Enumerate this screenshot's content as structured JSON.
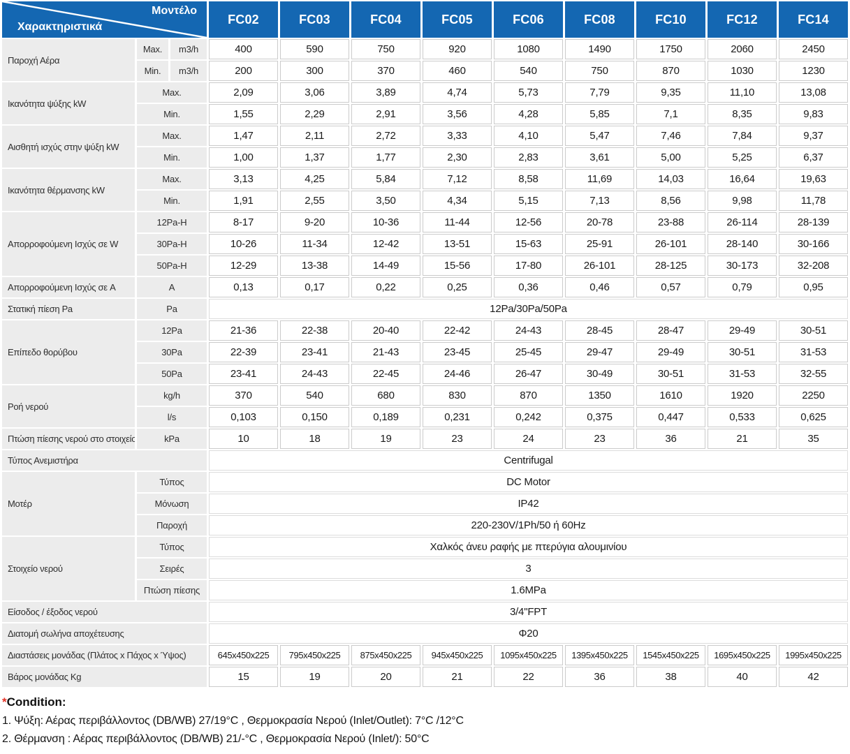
{
  "table": {
    "corner_top": "Μοντέλο",
    "corner_bottom": "Χαρακτηριστικά",
    "models": [
      "FC02",
      "FC03",
      "FC04",
      "FC05",
      "FC06",
      "FC08",
      "FC10",
      "FC12",
      "FC14"
    ],
    "colors": {
      "header_blue": "#1467b2",
      "label_bg": "#ececec",
      "cell_border": "#cbcbcb",
      "note_red": "#e53226"
    },
    "groups": [
      {
        "label": "Παροχή Αέρα",
        "rows": [
          {
            "sub": "Max.",
            "unit": "m3/h",
            "values": [
              "400",
              "590",
              "750",
              "920",
              "1080",
              "1490",
              "1750",
              "2060",
              "2450"
            ]
          },
          {
            "sub": "Min.",
            "unit": "m3/h",
            "values": [
              "200",
              "300",
              "370",
              "460",
              "540",
              "750",
              "870",
              "1030",
              "1230"
            ]
          }
        ]
      },
      {
        "label": "Ικανότητα ψύξης kW",
        "rows": [
          {
            "sub": "Max.",
            "values": [
              "2,09",
              "3,06",
              "3,89",
              "4,74",
              "5,73",
              "7,79",
              "9,35",
              "11,10",
              "13,08"
            ]
          },
          {
            "sub": "Min.",
            "values": [
              "1,55",
              "2,29",
              "2,91",
              "3,56",
              "4,28",
              "5,85",
              "7,1",
              "8,35",
              "9,83"
            ]
          }
        ]
      },
      {
        "label": "Αισθητή ισχύς στην ψύξη kW",
        "rows": [
          {
            "sub": "Max.",
            "values": [
              "1,47",
              "2,11",
              "2,72",
              "3,33",
              "4,10",
              "5,47",
              "7,46",
              "7,84",
              "9,37"
            ]
          },
          {
            "sub": "Min.",
            "values": [
              "1,00",
              "1,37",
              "1,77",
              "2,30",
              "2,83",
              "3,61",
              "5,00",
              "5,25",
              "6,37"
            ]
          }
        ]
      },
      {
        "label": "Ικανότητα θέρμανσης kW",
        "rows": [
          {
            "sub": "Max.",
            "values": [
              "3,13",
              "4,25",
              "5,84",
              "7,12",
              "8,58",
              "11,69",
              "14,03",
              "16,64",
              "19,63"
            ]
          },
          {
            "sub": "Min.",
            "values": [
              "1,91",
              "2,55",
              "3,50",
              "4,34",
              "5,15",
              "7,13",
              "8,56",
              "9,98",
              "11,78"
            ]
          }
        ]
      },
      {
        "label": "Απορροφούμενη Ισχύς σε W",
        "rows": [
          {
            "sub": "12Pa-H",
            "values": [
              "8-17",
              "9-20",
              "10-36",
              "11-44",
              "12-56",
              "20-78",
              "23-88",
              "26-114",
              "28-139"
            ]
          },
          {
            "sub": "30Pa-H",
            "values": [
              "10-26",
              "11-34",
              "12-42",
              "13-51",
              "15-63",
              "25-91",
              "26-101",
              "28-140",
              "30-166"
            ]
          },
          {
            "sub": "50Pa-H",
            "values": [
              "12-29",
              "13-38",
              "14-49",
              "15-56",
              "17-80",
              "26-101",
              "28-125",
              "30-173",
              "32-208"
            ]
          }
        ]
      },
      {
        "label": "Απορροφούμενη Ισχύς σε A",
        "rows": [
          {
            "sub": "A",
            "values": [
              "0,13",
              "0,17",
              "0,22",
              "0,25",
              "0,36",
              "0,46",
              "0,57",
              "0,79",
              "0,95"
            ]
          }
        ]
      },
      {
        "label": "Στατική πίεση Pa",
        "rows": [
          {
            "sub": "Pa",
            "span": "12Pa/30Pa/50Pa"
          }
        ]
      },
      {
        "label": "Επίπεδο θορύβου",
        "rows": [
          {
            "sub": "12Pa",
            "values": [
              "21-36",
              "22-38",
              "20-40",
              "22-42",
              "24-43",
              "28-45",
              "28-47",
              "29-49",
              "30-51"
            ]
          },
          {
            "sub": "30Pa",
            "values": [
              "22-39",
              "23-41",
              "21-43",
              "23-45",
              "25-45",
              "29-47",
              "29-49",
              "30-51",
              "31-53"
            ]
          },
          {
            "sub": "50Pa",
            "values": [
              "23-41",
              "24-43",
              "22-45",
              "24-46",
              "26-47",
              "30-49",
              "30-51",
              "31-53",
              "32-55"
            ]
          }
        ]
      },
      {
        "label": "Ροή νερού",
        "rows": [
          {
            "sub": "kg/h",
            "values": [
              "370",
              "540",
              "680",
              "830",
              "870",
              "1350",
              "1610",
              "1920",
              "2250"
            ]
          },
          {
            "sub": "l/s",
            "values": [
              "0,103",
              "0,150",
              "0,189",
              "0,231",
              "0,242",
              "0,375",
              "0,447",
              "0,533",
              "0,625"
            ]
          }
        ]
      },
      {
        "label": "Πτώση πίεσης νερού στο στοιχείο",
        "rows": [
          {
            "sub": "kPa",
            "values": [
              "10",
              "18",
              "19",
              "23",
              "24",
              "23",
              "36",
              "21",
              "35"
            ]
          }
        ]
      },
      {
        "label": "Τύπος Ανεμιστήρα",
        "full_label": true,
        "rows": [
          {
            "span": "Centrifugal"
          }
        ]
      },
      {
        "label": "Μοτέρ",
        "rows": [
          {
            "sub": "Τύπος",
            "span": "DC Motor"
          },
          {
            "sub": "Μόνωση",
            "span": "IP42"
          },
          {
            "sub": "Παροχή",
            "span": "220-230V/1Ph/50 ή 60Hz"
          }
        ]
      },
      {
        "label": "Στοιχείο νερού",
        "rows": [
          {
            "sub": "Τύπος",
            "span": "Χαλκός άνευ ραφής με πτερύγια αλουμινίου"
          },
          {
            "sub": "Σειρές",
            "span": "3"
          },
          {
            "sub": "Πτώση πίεσης",
            "span": "1.6MPa"
          }
        ]
      },
      {
        "label": "Είσοδος / έξοδος νερού",
        "full_label": true,
        "rows": [
          {
            "span": "3/4\"FPT"
          }
        ]
      },
      {
        "label": "Διατομή σωλήνα αποχέτευσης",
        "full_label": true,
        "rows": [
          {
            "span": "Φ20"
          }
        ]
      },
      {
        "label": "Διαστάσεις μονάδας (Πλάτος x Πάχος x Ύψος)",
        "full_label": true,
        "rows": [
          {
            "small": true,
            "values": [
              "645x450x225",
              "795x450x225",
              "875x450x225",
              "945x450x225",
              "1095x450x225",
              "1395x450x225",
              "1545x450x225",
              "1695x450x225",
              "1995x450x225"
            ]
          }
        ]
      },
      {
        "label": "Βάρος μονάδας Kg",
        "full_label": true,
        "rows": [
          {
            "values": [
              "15",
              "19",
              "20",
              "21",
              "22",
              "36",
              "38",
              "40",
              "42"
            ]
          }
        ]
      }
    ]
  },
  "footer": {
    "star": "*",
    "condition_label": "Condition:",
    "notes": [
      "1. Ψύξη: Αέρας περιβάλλοντος (DB/WB) 27/19°C , Θερμοκρασία Νερού (Inlet/Outlet): 7°C /12°C",
      "2. Θέρμανση : Αέρας περιβάλλοντος (DB/WB) 21/-°C , Θερμοκρασία Νερού (Inlet/): 50°C"
    ]
  }
}
